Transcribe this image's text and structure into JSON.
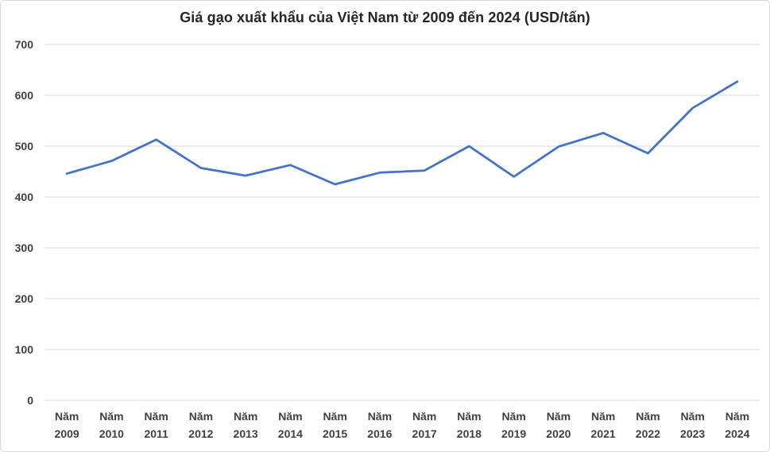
{
  "frame": {
    "background": "#ffffff",
    "border_color": "#d8d8d8"
  },
  "chart_data": {
    "type": "line",
    "title": "Giá gạo xuất khẩu của Việt Nam từ 2009 đến 2024 (USD/tấn)",
    "categories": [
      "Năm 2009",
      "Năm 2010",
      "Năm 2011",
      "Năm 2012",
      "Năm 2013",
      "Năm 2014",
      "Năm 2015",
      "Năm 2016",
      "Năm 2017",
      "Năm 2018",
      "Năm 2019",
      "Năm 2020",
      "Năm 2021",
      "Năm 2022",
      "Năm 2023",
      "Năm 2024"
    ],
    "values": [
      446,
      471,
      513,
      457,
      442,
      463,
      425,
      448,
      452,
      500,
      440,
      499,
      526,
      486,
      575,
      627
    ],
    "xlabel": "",
    "ylabel": "",
    "ylim": [
      0,
      700
    ],
    "ytick_step": 100,
    "yticks": [
      0,
      100,
      200,
      300,
      400,
      500,
      600,
      700
    ],
    "grid": "horizontal",
    "legend": "none",
    "line_color": "#4472c4",
    "gridline_color": "#d9d9d9",
    "tick_label_color": "#404040",
    "title_color": "#262626"
  }
}
